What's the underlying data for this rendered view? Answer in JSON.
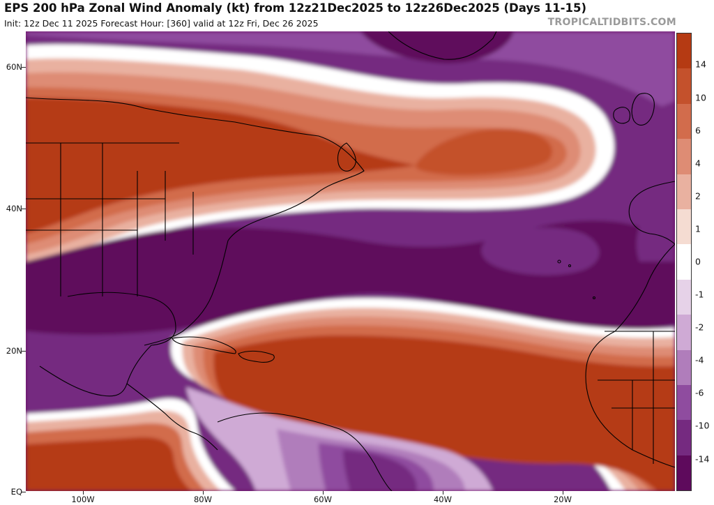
{
  "header": {
    "title": "EPS 200 hPa Zonal Wind Anomaly (kt) from 12z21Dec2025 to 12z26Dec2025 (Days 11-15)",
    "subtitle": "Init: 12z Dec 11 2025   Forecast Hour: [360]   valid at 12z Fri, Dec 26 2025",
    "brand": "TROPICALTIDBITS.COM"
  },
  "colorbar": {
    "labels": [
      "14",
      "10",
      "6",
      "4",
      "2",
      "1",
      "0",
      "-1",
      "-2",
      "-4",
      "-6",
      "-10",
      "-14"
    ],
    "colors": [
      "#b53a13",
      "#c4512c",
      "#d26c4c",
      "#de8c74",
      "#e9b1a0",
      "#f5dcd2",
      "#ffffff",
      "#e6d2e8",
      "#cfaad5",
      "#b07dbb",
      "#8f4c9f",
      "#752a80",
      "#5e0a5c"
    ]
  },
  "axes": {
    "lat_labels": [
      "60N",
      "40N",
      "20N",
      "EQ"
    ],
    "lon_labels": [
      "100W",
      "80W",
      "60W",
      "40W",
      "20W"
    ]
  },
  "map": {
    "field": "200 hPa zonal wind anomaly",
    "units": "kt",
    "region": "North Atlantic, eastern North America, Caribbean, NW Africa"
  }
}
